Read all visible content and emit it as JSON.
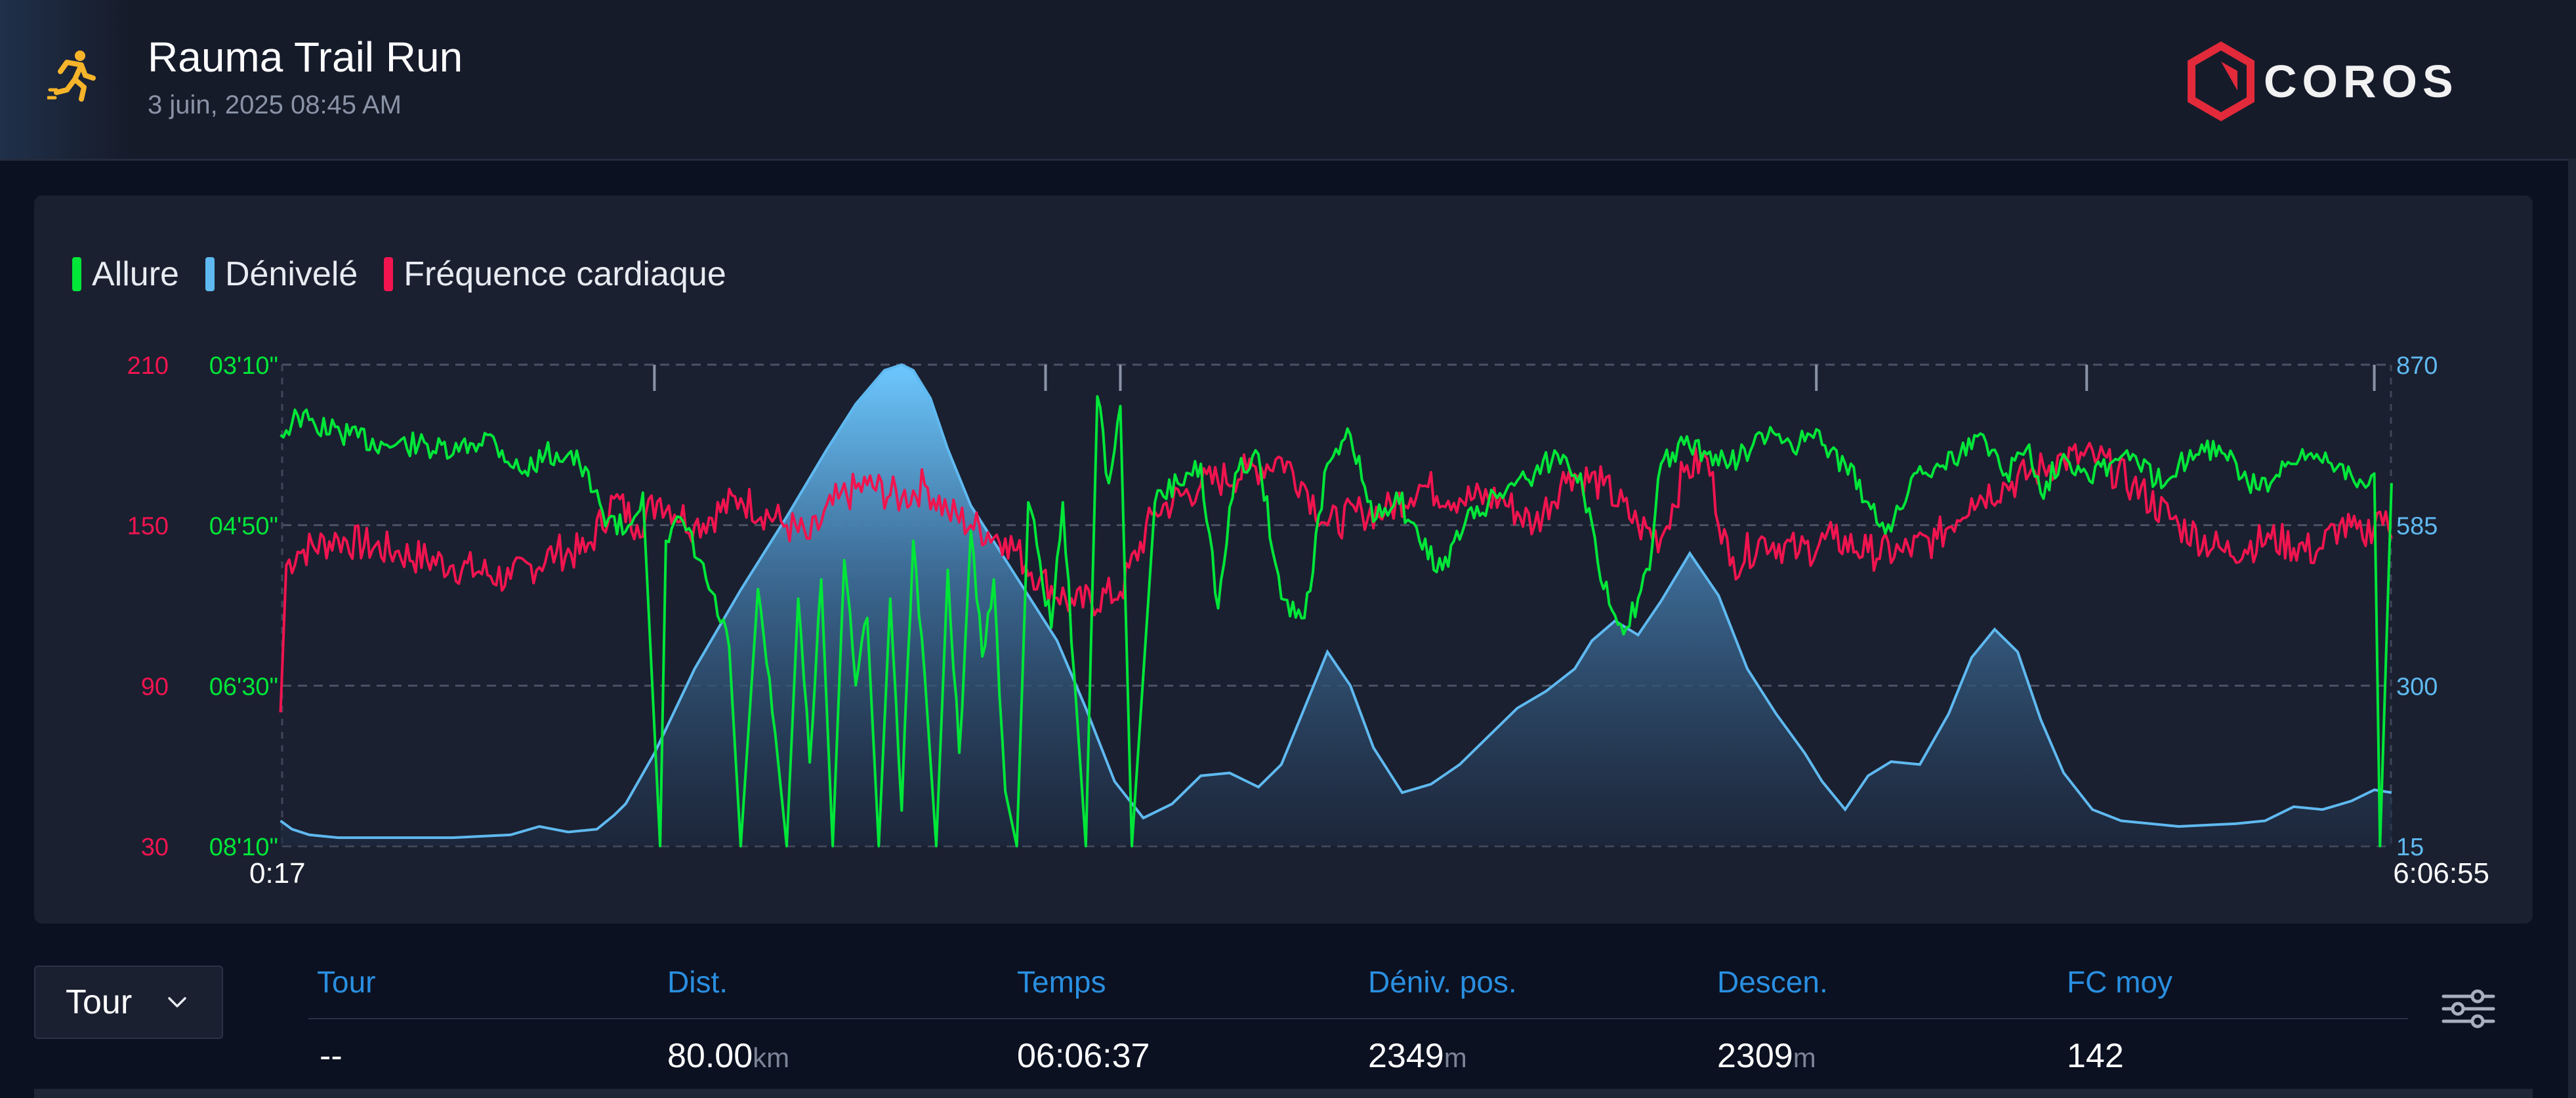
{
  "activity": {
    "title": "Rauma Trail Run",
    "datetime": "3 juin, 2025 08:45 AM",
    "icon": "running-person-icon"
  },
  "brand": {
    "name": "COROS",
    "color": "#e22a3a"
  },
  "legend": {
    "pace": "Allure",
    "elevation": "Dénivelé",
    "heart_rate": "Fréquence cardiaque"
  },
  "colors": {
    "pace": "#00e639",
    "elevation": "#5fb9f0",
    "heart_rate": "#f0144f",
    "link": "#2a8fe0"
  },
  "chart_data": {
    "type": "line",
    "x_start_label": "0:17",
    "x_end_label": "6:06:55",
    "x_range_minutes": [
      0.28,
      366.9
    ],
    "lap_markers_minutes": [
      65,
      133,
      146,
      267,
      314,
      364
    ],
    "axes": {
      "heart_rate": {
        "ticks": [
          "210",
          "150",
          "90",
          "30"
        ],
        "range": [
          30,
          210
        ]
      },
      "pace": {
        "ticks": [
          "03'10\"",
          "04'50\"",
          "06'30\"",
          "08'10\""
        ],
        "range_min_per_km": [
          3.17,
          8.17
        ],
        "inverted": true
      },
      "elevation": {
        "ticks": [
          "870",
          "585",
          "300",
          "15"
        ],
        "range": [
          15,
          870
        ]
      }
    },
    "grid": true,
    "series": [
      {
        "name": "Dénivelé",
        "x": [
          0,
          2,
          5,
          10,
          20,
          30,
          40,
          45,
          50,
          55,
          58,
          60,
          65,
          72,
          80,
          88,
          95,
          100,
          105,
          108,
          110,
          113,
          116,
          120,
          125,
          130,
          135,
          140,
          145,
          150,
          155,
          160,
          165,
          170,
          174,
          178,
          182,
          186,
          190,
          195,
          200,
          205,
          210,
          215,
          220,
          225,
          228,
          232,
          236,
          240,
          245,
          250,
          255,
          260,
          265,
          268,
          272,
          276,
          280,
          285,
          290,
          294,
          298,
          302,
          306,
          310,
          315,
          320,
          330,
          340,
          345,
          350,
          355,
          360,
          364,
          367
        ],
        "values": [
          60,
          45,
          35,
          30,
          30,
          30,
          35,
          50,
          40,
          45,
          70,
          90,
          180,
          330,
          470,
          600,
          720,
          800,
          860,
          870,
          860,
          810,
          720,
          620,
          540,
          460,
          380,
          260,
          130,
          65,
          90,
          140,
          145,
          120,
          160,
          260,
          360,
          300,
          190,
          110,
          125,
          160,
          210,
          260,
          290,
          330,
          380,
          415,
          390,
          450,
          535,
          460,
          330,
          250,
          180,
          130,
          80,
          140,
          165,
          160,
          250,
          350,
          400,
          360,
          240,
          145,
          80,
          60,
          50,
          55,
          60,
          85,
          80,
          95,
          115,
          110
        ]
      },
      {
        "name": "Fréquence cardiaque",
        "x": [
          0,
          1,
          3,
          10,
          20,
          30,
          40,
          48,
          53,
          58,
          62,
          66,
          72,
          80,
          88,
          92,
          97,
          102,
          108,
          112,
          116,
          120,
          126,
          132,
          138,
          146,
          152,
          160,
          168,
          174,
          178,
          182,
          188,
          192,
          198,
          205,
          212,
          218,
          224,
          230,
          236,
          240,
          244,
          248,
          252,
          258,
          264,
          270,
          276,
          282,
          288,
          294,
          300,
          305,
          310,
          316,
          322,
          330,
          338,
          346,
          354,
          358,
          362,
          365,
          367
        ],
        "values": [
          80,
          135,
          140,
          145,
          140,
          135,
          130,
          140,
          140,
          160,
          150,
          160,
          150,
          160,
          150,
          145,
          160,
          165,
          160,
          165,
          155,
          150,
          145,
          130,
          120,
          125,
          155,
          165,
          170,
          175,
          165,
          150,
          155,
          155,
          165,
          160,
          160,
          150,
          170,
          165,
          150,
          145,
          170,
          175,
          135,
          145,
          140,
          145,
          140,
          140,
          145,
          160,
          165,
          170,
          175,
          175,
          165,
          150,
          140,
          145,
          140,
          150,
          145,
          155,
          145
        ]
      },
      {
        "name": "Allure",
        "x": [
          0,
          3,
          6,
          12,
          18,
          24,
          30,
          36,
          42,
          46,
          50,
          52,
          56,
          60,
          63,
          66,
          67,
          70,
          74,
          78,
          80,
          83,
          86,
          88,
          90,
          92,
          94,
          96,
          98,
          100,
          102,
          104,
          106,
          108,
          110,
          112,
          114,
          116,
          118,
          120,
          122,
          124,
          126,
          128,
          130,
          132,
          134,
          136,
          138,
          140,
          142,
          144,
          146,
          148,
          152,
          156,
          160,
          163,
          166,
          170,
          174,
          178,
          182,
          184,
          186,
          190,
          194,
          198,
          202,
          206,
          210,
          214,
          218,
          222,
          226,
          230,
          234,
          236,
          238,
          240,
          244,
          248,
          252,
          256,
          260,
          264,
          266,
          268,
          272,
          276,
          280,
          284,
          288,
          292,
          296,
          300,
          304,
          306,
          310,
          314,
          318,
          322,
          326,
          330,
          334,
          338,
          342,
          346,
          350,
          354,
          358,
          362,
          364,
          365,
          367
        ],
        "values": [
          3.9,
          3.7,
          3.8,
          3.9,
          4.0,
          4.0,
          4.1,
          3.9,
          4.3,
          4.1,
          4.1,
          4.2,
          4.7,
          4.9,
          4.5,
          8.17,
          5.0,
          4.8,
          5.4,
          6.1,
          8.17,
          5.5,
          7.0,
          8.17,
          5.6,
          7.3,
          5.4,
          8.17,
          5.2,
          6.5,
          5.8,
          8.17,
          5.6,
          7.8,
          5.0,
          6.4,
          8.17,
          5.3,
          7.2,
          4.9,
          6.2,
          5.4,
          7.6,
          8.17,
          4.6,
          5.2,
          5.9,
          4.6,
          6.4,
          8.17,
          3.5,
          4.4,
          3.6,
          8.17,
          4.6,
          4.4,
          4.2,
          5.7,
          4.3,
          4.1,
          5.6,
          5.8,
          4.2,
          4.1,
          3.9,
          4.8,
          4.5,
          5.0,
          5.3,
          4.8,
          4.6,
          4.4,
          4.3,
          4.1,
          4.3,
          5.5,
          5.9,
          5.6,
          5.3,
          4.2,
          4.0,
          4.1,
          4.2,
          4.0,
          3.9,
          4.0,
          3.9,
          4.0,
          4.2,
          4.6,
          4.9,
          4.3,
          4.2,
          4.1,
          3.9,
          4.3,
          4.0,
          4.5,
          4.1,
          4.3,
          4.2,
          4.1,
          4.4,
          4.2,
          4.0,
          4.1,
          4.4,
          4.4,
          4.2,
          4.1,
          4.2,
          4.4,
          4.3,
          8.17,
          4.4
        ]
      }
    ]
  },
  "laps": {
    "select_label": "Tour",
    "columns": [
      "Tour",
      "Dist.",
      "Temps",
      "Déniv. pos.",
      "Descen.",
      "FC moy"
    ],
    "row": {
      "lap": "--",
      "distance": "80.00",
      "distance_unit": "km",
      "time": "06:06:37",
      "ascent": "2349",
      "ascent_unit": "m",
      "descent": "2309",
      "descent_unit": "m",
      "avg_hr": "142"
    }
  }
}
